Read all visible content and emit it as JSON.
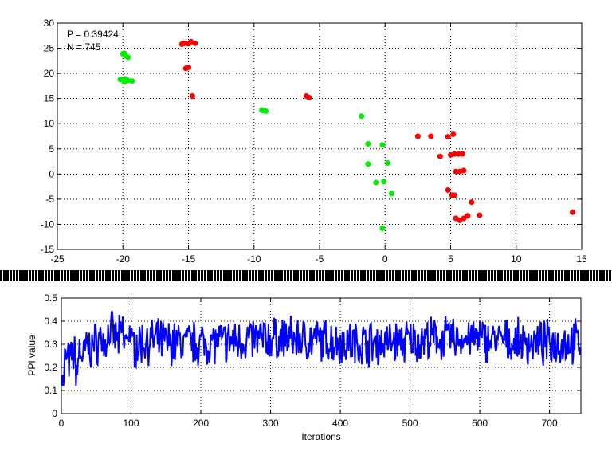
{
  "chart_data": [
    {
      "type": "scatter",
      "title": "",
      "xlabel": "",
      "ylabel": "",
      "xlim": [
        -25,
        15
      ],
      "ylim": [
        -15,
        30
      ],
      "xticks": [
        -25,
        -20,
        -15,
        -10,
        -5,
        0,
        5,
        10,
        15
      ],
      "yticks": [
        -15,
        -10,
        -5,
        0,
        5,
        10,
        15,
        20,
        25,
        30
      ],
      "grid": true,
      "annotations": [
        "P = 0.39424",
        "N = 745"
      ],
      "series": [
        {
          "color": "#00ee00",
          "points": [
            [
              -20.0,
              23.9
            ],
            [
              -19.8,
              23.5
            ],
            [
              -19.6,
              23.2
            ],
            [
              -19.9,
              24.0
            ],
            [
              -20.2,
              18.8
            ],
            [
              -19.9,
              18.3
            ],
            [
              -19.6,
              18.6
            ],
            [
              -19.3,
              18.5
            ],
            [
              -19.8,
              18.9
            ],
            [
              -9.4,
              12.7
            ],
            [
              -9.1,
              12.5
            ],
            [
              -9.3,
              12.6
            ],
            [
              -1.8,
              11.5
            ],
            [
              -0.2,
              5.8
            ],
            [
              -1.3,
              6.0
            ],
            [
              -1.3,
              2.0
            ],
            [
              0.2,
              2.2
            ],
            [
              -0.7,
              -1.7
            ],
            [
              -0.1,
              -1.5
            ],
            [
              0.5,
              -3.9
            ],
            [
              -0.2,
              -10.8
            ]
          ]
        },
        {
          "color": "#ff0000",
          "points": [
            [
              -15.3,
              26.0
            ],
            [
              -15.0,
              25.9
            ],
            [
              -14.8,
              26.3
            ],
            [
              -14.5,
              26.0
            ],
            [
              -15.5,
              25.8
            ],
            [
              -15.2,
              21.0
            ],
            [
              -15.0,
              21.2
            ],
            [
              -14.7,
              15.5
            ],
            [
              -6.0,
              15.5
            ],
            [
              -5.8,
              15.2
            ],
            [
              2.5,
              7.5
            ],
            [
              3.5,
              7.5
            ],
            [
              4.8,
              7.4
            ],
            [
              5.2,
              7.9
            ],
            [
              4.2,
              3.5
            ],
            [
              5.0,
              3.8
            ],
            [
              5.3,
              4.0
            ],
            [
              5.6,
              4.0
            ],
            [
              5.9,
              4.0
            ],
            [
              5.4,
              0.5
            ],
            [
              5.7,
              0.5
            ],
            [
              6.0,
              0.7
            ],
            [
              4.8,
              -3.2
            ],
            [
              5.1,
              -4.2
            ],
            [
              5.3,
              -4.2
            ],
            [
              6.6,
              -5.6
            ],
            [
              5.4,
              -8.8
            ],
            [
              5.7,
              -9.2
            ],
            [
              6.0,
              -8.8
            ],
            [
              6.3,
              -8.3
            ],
            [
              7.2,
              -8.2
            ],
            [
              14.3,
              -7.6
            ]
          ]
        }
      ]
    },
    {
      "type": "line",
      "title": "",
      "xlabel": "Iterations",
      "ylabel": "PPI value",
      "xlim": [
        0,
        745
      ],
      "ylim": [
        0,
        0.5
      ],
      "xticks": [
        0,
        100,
        200,
        300,
        400,
        500,
        600,
        700
      ],
      "yticks": [
        0,
        0.1,
        0.2,
        0.3,
        0.4,
        0.5
      ],
      "grid": true,
      "color": "#0000ff",
      "series": [
        {
          "n": 745,
          "y": [
            0.13,
            0.24,
            0.22,
            0.26,
            0.2,
            0.27,
            0.25,
            0.29,
            0.28,
            0.3,
            0.31,
            0.33,
            0.3,
            0.34,
            0.36,
            0.33,
            0.32,
            0.35,
            0.31,
            0.36
          ]
        }
      ]
    }
  ]
}
